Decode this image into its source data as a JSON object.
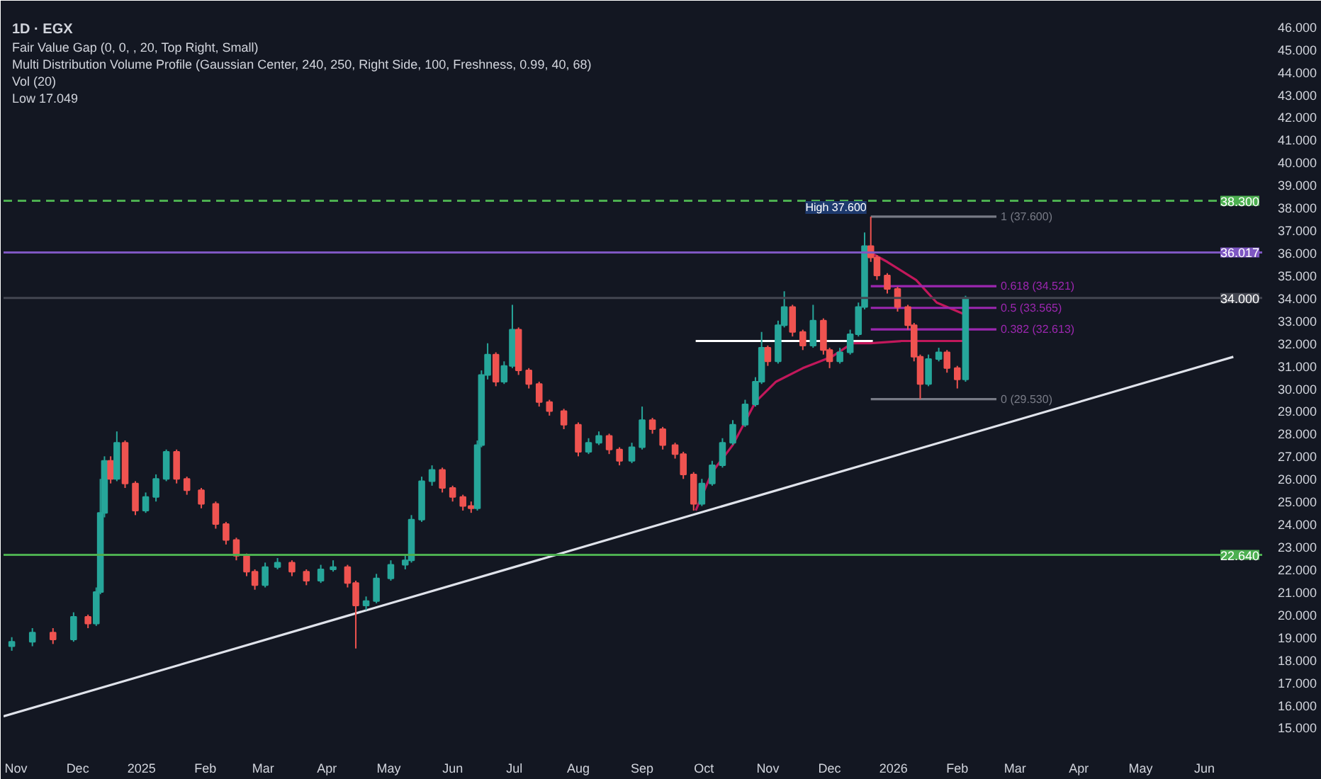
{
  "chart_data": {
    "type": "candlestick",
    "title": "1D · EGX",
    "annotations": [
      "Fair Value Gap (0, 0, , 20, Top Right, Small)",
      "Multi Distribution Volume Profile (Gaussian Center, 240, 250, Right Side, 100, Freshness, 0.99, 40, 68)",
      "Vol (20)",
      "Low 17.049",
      {
        "text": "High 37.600",
        "x": "2025-12-21",
        "y": 37.6
      }
    ],
    "x": [
      "2024-10-30",
      "2024-11-09",
      "2024-11-19",
      "2024-11-29",
      "2024-12-06",
      "2024-12-10",
      "2024-12-12",
      "2024-12-14",
      "2024-12-17",
      "2024-12-20",
      "2024-12-24",
      "2024-12-29",
      "2025-01-03",
      "2025-01-08",
      "2025-01-13",
      "2025-01-18",
      "2025-01-23",
      "2025-01-30",
      "2025-02-06",
      "2025-02-11",
      "2025-02-16",
      "2025-02-21",
      "2025-02-25",
      "2025-03-02",
      "2025-03-08",
      "2025-03-15",
      "2025-03-22",
      "2025-03-29",
      "2025-04-04",
      "2025-04-11",
      "2025-04-15",
      "2025-04-20",
      "2025-04-25",
      "2025-05-02",
      "2025-05-09",
      "2025-05-12",
      "2025-05-17",
      "2025-05-22",
      "2025-05-27",
      "2025-06-01",
      "2025-06-06",
      "2025-06-10",
      "2025-06-13",
      "2025-06-15",
      "2025-06-18",
      "2025-06-22",
      "2025-06-26",
      "2025-06-30",
      "2025-07-03",
      "2025-07-08",
      "2025-07-13",
      "2025-07-18",
      "2025-07-25",
      "2025-08-01",
      "2025-08-06",
      "2025-08-11",
      "2025-08-16",
      "2025-08-21",
      "2025-08-27",
      "2025-09-01",
      "2025-09-06",
      "2025-09-11",
      "2025-09-17",
      "2025-09-21",
      "2025-09-26",
      "2025-09-30",
      "2025-10-05",
      "2025-10-10",
      "2025-10-15",
      "2025-10-21",
      "2025-10-26",
      "2025-10-29",
      "2025-11-01",
      "2025-11-06",
      "2025-11-09",
      "2025-11-13",
      "2025-11-18",
      "2025-11-23",
      "2025-11-28",
      "2025-12-01",
      "2025-12-06",
      "2025-12-11",
      "2025-12-15",
      "2025-12-18",
      "2025-12-21",
      "2025-12-24",
      "2025-12-29",
      "2026-01-03",
      "2026-01-08",
      "2026-01-11",
      "2026-01-14",
      "2026-01-18",
      "2026-01-23",
      "2026-01-27",
      "2026-02-01",
      "2026-02-05"
    ],
    "ohlc": [
      [
        18.6,
        19.0,
        18.4,
        18.8
      ],
      [
        18.8,
        19.4,
        18.6,
        19.2
      ],
      [
        19.2,
        19.4,
        18.7,
        18.9
      ],
      [
        18.9,
        20.1,
        18.8,
        19.9
      ],
      [
        19.9,
        20.0,
        19.4,
        19.6
      ],
      [
        19.6,
        21.2,
        19.5,
        21.0
      ],
      [
        21.0,
        26.0,
        20.9,
        24.5
      ],
      [
        24.5,
        27.0,
        24.3,
        26.8
      ],
      [
        26.8,
        27.0,
        25.8,
        26.0
      ],
      [
        26.0,
        28.1,
        25.9,
        27.6
      ],
      [
        27.6,
        27.7,
        25.6,
        25.8
      ],
      [
        25.8,
        25.9,
        24.4,
        24.6
      ],
      [
        24.6,
        25.4,
        24.5,
        25.2
      ],
      [
        25.2,
        26.2,
        25.0,
        26.0
      ],
      [
        26.0,
        27.3,
        25.9,
        27.2
      ],
      [
        27.2,
        27.3,
        25.8,
        26.0
      ],
      [
        26.0,
        26.1,
        25.3,
        25.5
      ],
      [
        25.5,
        25.6,
        24.7,
        24.9
      ],
      [
        24.9,
        25.0,
        23.8,
        24.0
      ],
      [
        24.0,
        24.1,
        23.1,
        23.3
      ],
      [
        23.3,
        23.4,
        22.4,
        22.6
      ],
      [
        22.6,
        22.7,
        21.7,
        21.9
      ],
      [
        21.9,
        22.0,
        21.1,
        21.3
      ],
      [
        21.3,
        22.3,
        21.2,
        22.1
      ],
      [
        22.1,
        22.5,
        22.0,
        22.3
      ],
      [
        22.3,
        22.4,
        21.7,
        21.9
      ],
      [
        21.9,
        22.0,
        21.3,
        21.5
      ],
      [
        21.5,
        22.2,
        21.4,
        22.0
      ],
      [
        22.0,
        22.4,
        21.9,
        22.1
      ],
      [
        22.1,
        22.2,
        21.2,
        21.4
      ],
      [
        21.4,
        21.5,
        18.5,
        20.4
      ],
      [
        20.4,
        20.8,
        20.2,
        20.6
      ],
      [
        20.6,
        21.8,
        20.5,
        21.6
      ],
      [
        21.6,
        22.4,
        21.5,
        22.2
      ],
      [
        22.2,
        22.6,
        22.0,
        22.4
      ],
      [
        22.4,
        24.4,
        22.3,
        24.2
      ],
      [
        24.2,
        26.1,
        24.1,
        25.9
      ],
      [
        25.9,
        26.6,
        25.7,
        26.4
      ],
      [
        26.4,
        26.5,
        25.4,
        25.6
      ],
      [
        25.6,
        25.7,
        25.0,
        25.2
      ],
      [
        25.2,
        25.3,
        24.6,
        24.8
      ],
      [
        24.8,
        25.0,
        24.5,
        24.7
      ],
      [
        24.7,
        27.7,
        24.6,
        27.5
      ],
      [
        27.5,
        30.8,
        27.4,
        30.6
      ],
      [
        30.6,
        32.0,
        30.4,
        31.5
      ],
      [
        31.5,
        31.6,
        30.1,
        30.3
      ],
      [
        30.3,
        31.2,
        30.2,
        31.0
      ],
      [
        31.0,
        33.7,
        30.9,
        32.6
      ],
      [
        32.6,
        32.7,
        30.6,
        30.8
      ],
      [
        30.8,
        30.9,
        30.0,
        30.2
      ],
      [
        30.2,
        30.3,
        29.2,
        29.4
      ],
      [
        29.4,
        29.5,
        28.8,
        29.0
      ],
      [
        29.0,
        29.1,
        28.2,
        28.4
      ],
      [
        28.4,
        28.5,
        27.0,
        27.2
      ],
      [
        27.2,
        27.8,
        27.1,
        27.6
      ],
      [
        27.6,
        28.1,
        27.5,
        27.9
      ],
      [
        27.9,
        28.0,
        27.1,
        27.3
      ],
      [
        27.3,
        27.4,
        26.6,
        26.8
      ],
      [
        26.8,
        27.6,
        26.7,
        27.4
      ],
      [
        27.4,
        29.2,
        27.3,
        28.6
      ],
      [
        28.6,
        28.7,
        28.0,
        28.2
      ],
      [
        28.2,
        28.3,
        27.3,
        27.5
      ],
      [
        27.5,
        27.6,
        26.9,
        27.1
      ],
      [
        27.1,
        27.2,
        26.0,
        26.2
      ],
      [
        26.2,
        26.3,
        24.6,
        24.9
      ],
      [
        24.9,
        26.0,
        24.8,
        25.8
      ],
      [
        25.8,
        26.8,
        25.7,
        26.6
      ],
      [
        26.6,
        27.8,
        26.5,
        27.6
      ],
      [
        27.6,
        28.6,
        27.5,
        28.4
      ],
      [
        28.4,
        29.5,
        28.3,
        29.3
      ],
      [
        29.3,
        30.5,
        29.2,
        30.3
      ],
      [
        30.3,
        32.5,
        30.2,
        31.8
      ],
      [
        31.8,
        31.9,
        31.0,
        31.2
      ],
      [
        31.2,
        33.0,
        31.1,
        32.8
      ],
      [
        32.8,
        34.3,
        32.7,
        33.6
      ],
      [
        33.6,
        33.7,
        32.3,
        32.5
      ],
      [
        32.5,
        32.6,
        31.7,
        31.9
      ],
      [
        31.9,
        33.7,
        31.8,
        33.0
      ],
      [
        33.0,
        33.1,
        31.5,
        31.7
      ],
      [
        31.7,
        31.8,
        30.9,
        31.2
      ],
      [
        31.2,
        31.8,
        31.1,
        31.6
      ],
      [
        31.6,
        32.6,
        31.5,
        32.4
      ],
      [
        32.4,
        33.8,
        32.3,
        33.6
      ],
      [
        33.6,
        36.9,
        33.5,
        36.3
      ],
      [
        36.3,
        37.6,
        35.6,
        35.8
      ],
      [
        35.8,
        35.9,
        34.8,
        35.0
      ],
      [
        35.0,
        35.1,
        34.2,
        34.4
      ],
      [
        34.4,
        34.5,
        33.4,
        33.6
      ],
      [
        33.6,
        33.7,
        32.6,
        32.8
      ],
      [
        32.8,
        32.9,
        31.2,
        31.4
      ],
      [
        31.4,
        31.5,
        29.53,
        30.2
      ],
      [
        30.2,
        31.5,
        30.1,
        31.3
      ],
      [
        31.3,
        31.8,
        31.2,
        31.6
      ],
      [
        31.6,
        31.7,
        30.7,
        30.9
      ],
      [
        30.9,
        31.0,
        30.0,
        30.4
      ],
      [
        30.4,
        34.1,
        30.3,
        34.0
      ]
    ],
    "series": [
      {
        "type": "line",
        "color": "#e0e3eb",
        "x": [
          "2024-10-26",
          "2026-06-15"
        ],
        "values": [
          15.5,
          31.4
        ]
      },
      {
        "type": "line",
        "color": "#ffffff",
        "x": [
          "2025-09-27",
          "2025-12-22"
        ],
        "values": [
          32.1,
          32.1
        ]
      },
      {
        "type": "line",
        "color": "#c2185b",
        "x": [
          "2025-09-27",
          "2025-10-05",
          "2025-10-15",
          "2025-10-26",
          "2025-11-05",
          "2025-11-18",
          "2025-12-02",
          "2025-12-12",
          "2025-12-21",
          "2026-01-05",
          "2026-02-04"
        ],
        "values": [
          24.6,
          26.3,
          27.5,
          29.4,
          30.3,
          30.9,
          31.4,
          32.0,
          32.0,
          32.1,
          32.1
        ]
      },
      {
        "type": "line",
        "color": "#c2185b",
        "x": [
          "2025-12-21",
          "2025-12-29",
          "2026-01-12",
          "2026-01-22",
          "2026-02-04"
        ],
        "values": [
          36.0,
          35.6,
          34.8,
          33.8,
          33.3
        ]
      },
      {
        "type": "line",
        "name": "1 (37.600)",
        "color": "#787b86",
        "x": [
          "2025-12-21",
          "2026-02-20"
        ],
        "values": [
          37.6,
          37.6
        ]
      },
      {
        "type": "line",
        "name": "0.618 (34.521)",
        "color": "#9c27b0",
        "x": [
          "2025-12-21",
          "2026-02-20"
        ],
        "values": [
          34.521,
          34.521
        ]
      },
      {
        "type": "line",
        "name": "0.5 (33.565)",
        "color": "#9c27b0",
        "x": [
          "2025-12-21",
          "2026-02-20"
        ],
        "values": [
          33.565,
          33.565
        ]
      },
      {
        "type": "line",
        "name": "0.382 (32.613)",
        "color": "#9c27b0",
        "x": [
          "2025-12-21",
          "2026-02-20"
        ],
        "values": [
          32.613,
          32.613
        ]
      },
      {
        "type": "line",
        "name": "0 (29.530)",
        "color": "#787b86",
        "x": [
          "2025-12-21",
          "2026-02-20"
        ],
        "values": [
          29.53,
          29.53
        ]
      }
    ],
    "ref_lines": [
      {
        "axis": "y",
        "value": 38.3,
        "label": "38.300",
        "color": "#4caf50",
        "line_style": "dashed"
      },
      {
        "axis": "y",
        "value": 36.017,
        "label": "36.017",
        "color": "#7e57c2"
      },
      {
        "axis": "y",
        "value": 34.0,
        "label": "34.000",
        "color": "#434651"
      },
      {
        "axis": "y",
        "value": 22.64,
        "label": "22.640",
        "color": "#4caf50"
      }
    ],
    "xlim": [
      "2024-10-26",
      "2026-06-29"
    ],
    "xticks": [
      {
        "value": "2024-11-01",
        "label": "Nov"
      },
      {
        "value": "2024-12-01",
        "label": "Dec"
      },
      {
        "value": "2025-01-01",
        "label": "2025"
      },
      {
        "value": "2025-02-01",
        "label": "Feb"
      },
      {
        "value": "2025-03-01",
        "label": "Mar"
      },
      {
        "value": "2025-04-01",
        "label": "Apr"
      },
      {
        "value": "2025-05-01",
        "label": "May"
      },
      {
        "value": "2025-06-01",
        "label": "Jun"
      },
      {
        "value": "2025-07-01",
        "label": "Jul"
      },
      {
        "value": "2025-08-01",
        "label": "Aug"
      },
      {
        "value": "2025-09-01",
        "label": "Sep"
      },
      {
        "value": "2025-10-01",
        "label": "Oct"
      },
      {
        "value": "2025-11-01",
        "label": "Nov"
      },
      {
        "value": "2025-12-01",
        "label": "Dec"
      },
      {
        "value": "2026-01-01",
        "label": "2026"
      },
      {
        "value": "2026-02-01",
        "label": "Feb"
      },
      {
        "value": "2026-03-01",
        "label": "Mar"
      },
      {
        "value": "2026-04-01",
        "label": "Apr"
      },
      {
        "value": "2026-05-01",
        "label": "May"
      },
      {
        "value": "2026-06-01",
        "label": "Jun"
      }
    ],
    "ylim": [
      14.2,
      46.9
    ],
    "yticks": [
      {
        "value": 15,
        "label": "15.000"
      },
      {
        "value": 16,
        "label": "16.000"
      },
      {
        "value": 17,
        "label": "17.000"
      },
      {
        "value": 18,
        "label": "18.000"
      },
      {
        "value": 19,
        "label": "19.000"
      },
      {
        "value": 20,
        "label": "20.000"
      },
      {
        "value": 21,
        "label": "21.000"
      },
      {
        "value": 22,
        "label": "22.000"
      },
      {
        "value": 23,
        "label": "23.000"
      },
      {
        "value": 24,
        "label": "24.000"
      },
      {
        "value": 25,
        "label": "25.000"
      },
      {
        "value": 26,
        "label": "26.000"
      },
      {
        "value": 27,
        "label": "27.000"
      },
      {
        "value": 28,
        "label": "28.000"
      },
      {
        "value": 29,
        "label": "29.000"
      },
      {
        "value": 30,
        "label": "30.000"
      },
      {
        "value": 31,
        "label": "31.000"
      },
      {
        "value": 32,
        "label": "32.000"
      },
      {
        "value": 33,
        "label": "33.000"
      },
      {
        "value": 34,
        "label": "34.000"
      },
      {
        "value": 35,
        "label": "35.000"
      },
      {
        "value": 36,
        "label": "36.000"
      },
      {
        "value": 37,
        "label": "37.000"
      },
      {
        "value": 38,
        "label": "38.000"
      },
      {
        "value": 39,
        "label": "39.000"
      },
      {
        "value": 40,
        "label": "40.000"
      },
      {
        "value": 41,
        "label": "41.000"
      },
      {
        "value": 42,
        "label": "42.000"
      },
      {
        "value": 43,
        "label": "43.000"
      },
      {
        "value": 44,
        "label": "44.000"
      },
      {
        "value": 45,
        "label": "45.000"
      },
      {
        "value": 46,
        "label": "46.000"
      }
    ],
    "grid": false
  }
}
